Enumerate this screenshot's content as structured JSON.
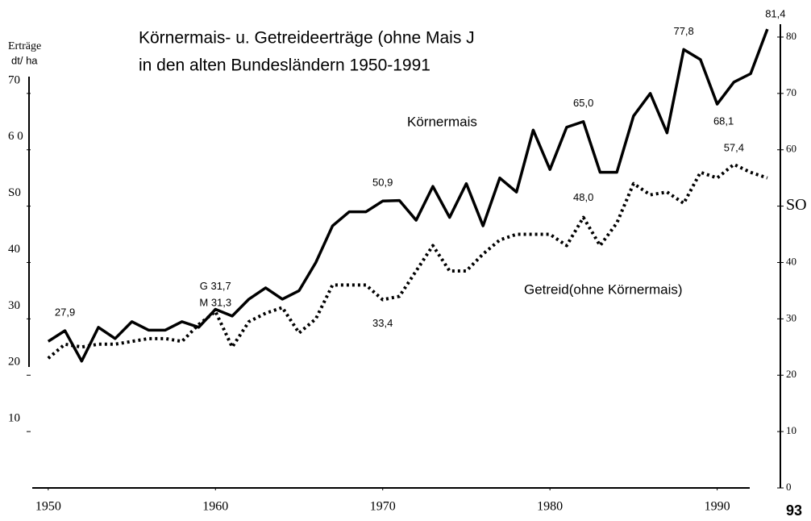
{
  "chart_data": {
    "type": "line",
    "title": "Körnermais- u. Getreideerträge (ohne Mais J",
    "subtitle": "in den alten Bundesländern 1950-1991",
    "y_label": [
      "Erträge",
      "dt/ ha"
    ],
    "x": [
      1950,
      1951,
      1952,
      1953,
      1954,
      1955,
      1956,
      1957,
      1958,
      1959,
      1960,
      1961,
      1962,
      1963,
      1964,
      1965,
      1966,
      1967,
      1968,
      1969,
      1970,
      1971,
      1972,
      1973,
      1974,
      1975,
      1976,
      1977,
      1978,
      1979,
      1980,
      1981,
      1982,
      1983,
      1984,
      1985,
      1986,
      1987,
      1988,
      1989,
      1990,
      1991,
      1992,
      1993
    ],
    "series": [
      {
        "name": "Körnermais",
        "color": "#000000",
        "style": "solid",
        "values": [
          26,
          27.9,
          22.5,
          28.5,
          26.5,
          29.5,
          28,
          28,
          29.5,
          28.5,
          31.7,
          30.5,
          33.5,
          35.5,
          33.5,
          35,
          40,
          46.5,
          49,
          49,
          50.9,
          51,
          47.5,
          53.5,
          48,
          54,
          46.5,
          55,
          52.5,
          63.5,
          56.5,
          64,
          65,
          56,
          56,
          66,
          70,
          63,
          77.8,
          76,
          68.1,
          72,
          73.5,
          81.4
        ]
      },
      {
        "name": "Getreid(ohne Körnermais)",
        "color": "#000000",
        "style": "dotted",
        "values": [
          23,
          25.5,
          25,
          25.5,
          25.5,
          26,
          26.5,
          26.5,
          26,
          29,
          31.3,
          25,
          29.5,
          31,
          32,
          27.5,
          30,
          36,
          36,
          36,
          33.4,
          34,
          38.5,
          43,
          38.5,
          38.5,
          41.5,
          44,
          45,
          45,
          45,
          43,
          48,
          43,
          47,
          54,
          52,
          52.5,
          50.5,
          56,
          55,
          57.4,
          56,
          55
        ]
      }
    ],
    "xlim": [
      1948.9,
      1993.2
    ],
    "xticks": [
      1950,
      1960,
      1970,
      1980,
      1990
    ],
    "ylim": [
      0,
      84
    ],
    "yticks": [
      10,
      20,
      30,
      40,
      {
        "value": 50,
        "label": "S0"
      },
      {
        "value": 60,
        "label": "6 0"
      },
      70
    ],
    "y2ticks": [
      0,
      10,
      20,
      30,
      40,
      {
        "value": 50,
        "label": "SO"
      },
      60,
      70,
      80
    ],
    "annotations": [
      {
        "text": "27,9",
        "series": 0,
        "index": 1
      },
      {
        "text": "G 31,7",
        "series": 0,
        "index": 10
      },
      {
        "text": "M 31,3",
        "series": 1,
        "index": 10
      },
      {
        "text": "50,9",
        "series": 0,
        "index": 20
      },
      {
        "text": "65,0",
        "series": 0,
        "index": 32
      },
      {
        "text": "77,8",
        "series": 0,
        "index": 38
      },
      {
        "text": "68,1",
        "series": 0,
        "index": 40
      },
      {
        "text": "81,4",
        "series": 0,
        "index": 43
      },
      {
        "text": "57,4",
        "series": 1,
        "index": 41
      },
      {
        "text": "48,0",
        "series": 1,
        "index": 32
      },
      {
        "text": "33,4",
        "series": 1,
        "index": 20
      }
    ],
    "footnote": "93"
  }
}
